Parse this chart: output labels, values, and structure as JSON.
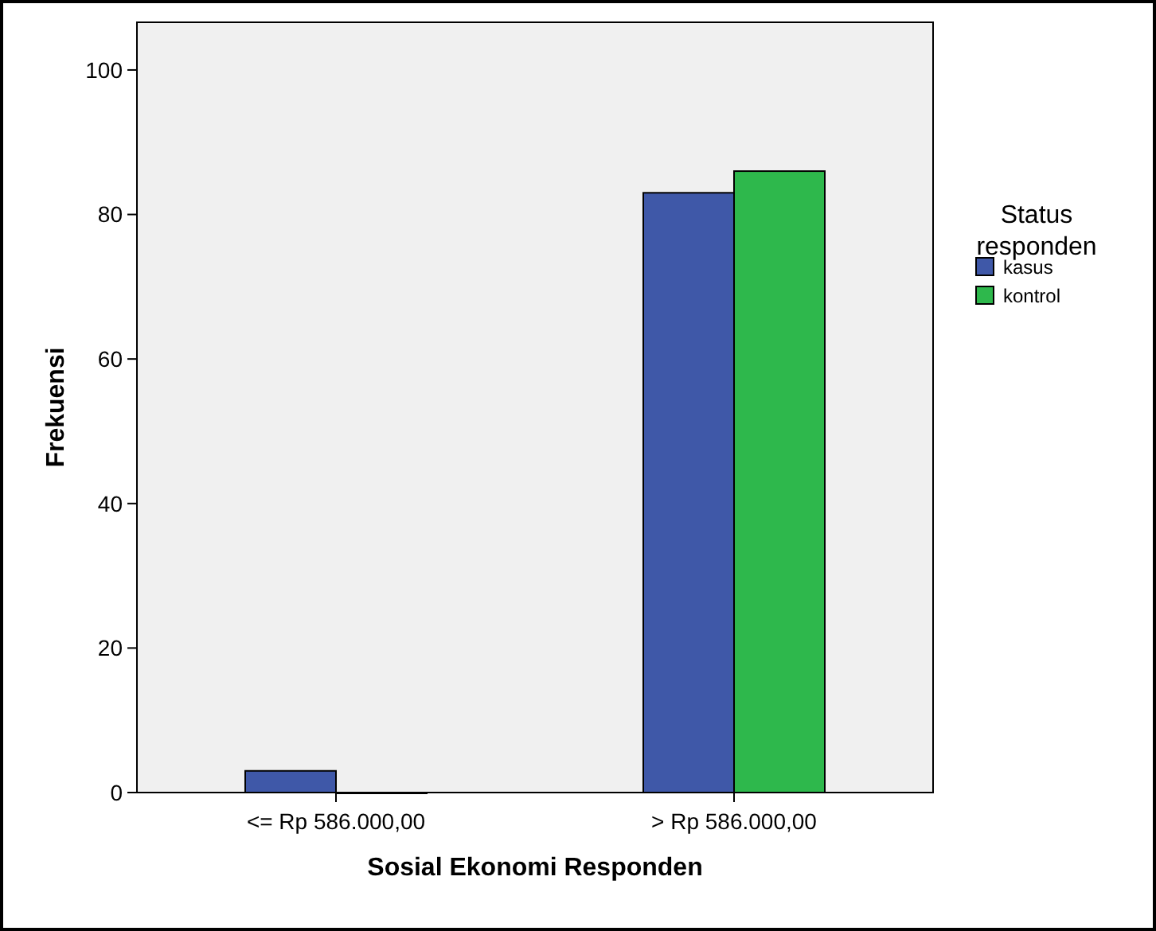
{
  "chart_data": {
    "type": "bar",
    "xlabel": "Sosial Ekonomi Responden",
    "ylabel": "Frekuensi",
    "legend_title": "Status responden",
    "categories": [
      "<= Rp 586.000,00",
      "> Rp 586.000,00"
    ],
    "series": [
      {
        "name": "kasus",
        "color": "#3f58a8",
        "values": [
          3,
          83
        ]
      },
      {
        "name": "kontrol",
        "color": "#2eb84c",
        "values": [
          0,
          86
        ]
      }
    ],
    "ylim": [
      0,
      106.6
    ],
    "yticks": [
      0,
      20,
      40,
      60,
      80,
      100
    ],
    "legend": "right",
    "grid": false
  }
}
